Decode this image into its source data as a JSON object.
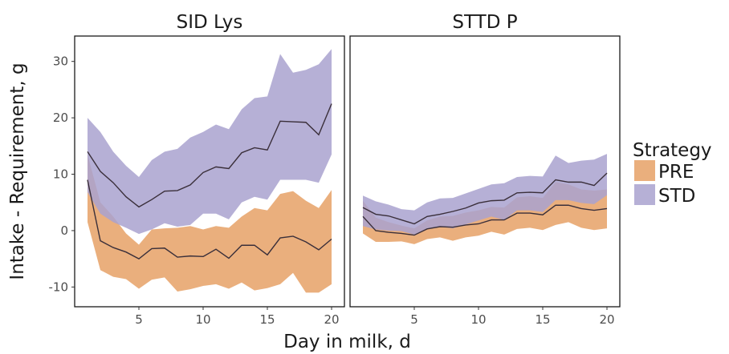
{
  "chart_data": {
    "type": "area",
    "xlabel": "Day in milk, d",
    "ylabel": "Intake - Requirement, g",
    "xlim": [
      0,
      21
    ],
    "ylim": [
      -13.5,
      34.5
    ],
    "xticks": [
      5,
      10,
      15,
      20
    ],
    "yticks": [
      -10,
      0,
      10,
      20,
      30
    ],
    "grid": false,
    "legend": {
      "title": "Strategy",
      "placement": "right",
      "entries": [
        {
          "name": "PRE",
          "color": "#E6A166"
        },
        {
          "name": "STD",
          "color": "#A9A2CF"
        }
      ]
    },
    "x": [
      1,
      2,
      3,
      4,
      5,
      6,
      7,
      8,
      9,
      10,
      11,
      12,
      13,
      14,
      15,
      16,
      17,
      18,
      19,
      20
    ],
    "panels": [
      {
        "title": "SID Lys",
        "series": [
          {
            "name": "PRE",
            "mean": [
              9,
              -1.8,
              -3,
              -3.8,
              -5,
              -3.2,
              -3.1,
              -4.7,
              -4.5,
              -4.6,
              -3.3,
              -4.9,
              -2.6,
              -2.6,
              -4.3,
              -1.3,
              -1,
              -2,
              -3.4,
              -1.5
            ],
            "lower": [
              1.5,
              -7,
              -8.2,
              -8.6,
              -10.3,
              -8.7,
              -8.3,
              -10.8,
              -10.4,
              -9.8,
              -9.5,
              -10.3,
              -9.2,
              -10.6,
              -10.2,
              -9.5,
              -7.5,
              -11,
              -11,
              -9.5
            ],
            "upper": [
              13.5,
              5,
              2.5,
              -0.5,
              -2.5,
              0.2,
              0.4,
              0.5,
              0.8,
              0.2,
              0.8,
              0.5,
              2.5,
              4,
              3.6,
              6.5,
              7,
              5.3,
              4,
              7.2
            ]
          },
          {
            "name": "STD",
            "mean": [
              14,
              10.5,
              8.5,
              6,
              4.2,
              5.5,
              7,
              7.1,
              8.1,
              10.3,
              11.3,
              11,
              13.8,
              14.7,
              14.3,
              19.4,
              19.3,
              19.2,
              17,
              22.5
            ],
            "lower": [
              6.8,
              3,
              1.5,
              0.5,
              -0.6,
              0.2,
              1.3,
              0.7,
              1,
              3,
              3,
              2,
              5,
              6,
              5.5,
              9,
              9,
              9,
              8.5,
              13.5
            ],
            "upper": [
              20,
              17.5,
              14,
              11.5,
              9.5,
              12.5,
              14,
              14.5,
              16.5,
              17.5,
              18.8,
              18,
              21.5,
              23.5,
              23.8,
              31.3,
              28,
              28.5,
              29.5,
              32.2
            ]
          }
        ]
      },
      {
        "title": "STTD P",
        "series": [
          {
            "name": "PRE",
            "mean": [
              2.5,
              0,
              -0.3,
              -0.5,
              -0.8,
              0.3,
              0.7,
              0.6,
              1,
              1.2,
              1.9,
              1.9,
              3.1,
              3.1,
              2.8,
              4.5,
              4.5,
              3.9,
              3.6,
              3.9
            ],
            "lower": [
              -0.5,
              -2,
              -2,
              -1.9,
              -2.4,
              -1.5,
              -1.2,
              -1.8,
              -1.2,
              -0.9,
              -0.2,
              -0.7,
              0.3,
              0.5,
              0.1,
              1,
              1.5,
              0.5,
              0.1,
              0.4
            ],
            "upper": [
              5.3,
              2.3,
              1.5,
              0.9,
              0.4,
              1.8,
              2.5,
              2.6,
              3.2,
              3.6,
              4.2,
              4.1,
              5.9,
              6.1,
              5.8,
              8.6,
              8.2,
              7.3,
              7.1,
              7.3
            ]
          },
          {
            "name": "STD",
            "mean": [
              4.1,
              2.9,
              2.6,
              1.9,
              1.2,
              2.5,
              2.9,
              3.4,
              4,
              4.9,
              5.3,
              5.4,
              6.7,
              6.8,
              6.7,
              9,
              8.6,
              8.6,
              8,
              10.2
            ],
            "lower": [
              0.8,
              0.2,
              0,
              -0.1,
              -0.7,
              0.3,
              0.7,
              0.4,
              1.1,
              1.8,
              2.5,
              1.9,
              3.6,
              3.6,
              3.3,
              5.4,
              5.4,
              4.9,
              4.7,
              6.3
            ],
            "upper": [
              6.2,
              5.2,
              4.6,
              3.8,
              3.6,
              5,
              5.7,
              5.8,
              6.6,
              7.4,
              8.2,
              8.4,
              9.5,
              9.7,
              9.6,
              13.3,
              12,
              12.4,
              12.6,
              13.6
            ]
          }
        ]
      }
    ]
  }
}
